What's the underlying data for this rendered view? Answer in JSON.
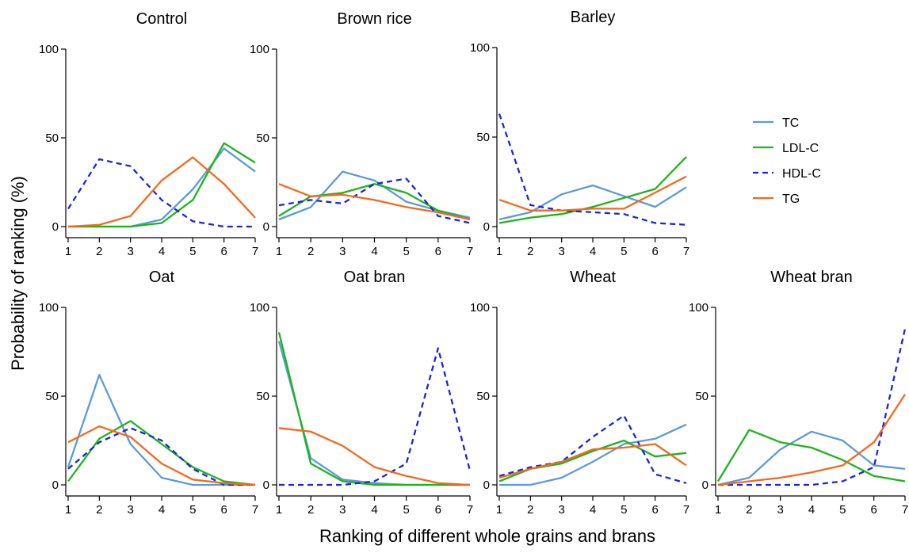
{
  "figure": {
    "ylabel": "Probability of ranking (%)",
    "xlabel": "Ranking of different whole grains and brans"
  },
  "legend": [
    {
      "key": "TC",
      "label": "TC",
      "color": "#5b9bd5",
      "dash": "solid"
    },
    {
      "key": "LDL",
      "label": "LDL-C",
      "color": "#1fb31f",
      "dash": "solid"
    },
    {
      "key": "HDL",
      "label": "HDL-C",
      "color": "#1b26d6",
      "dash": "dashed"
    },
    {
      "key": "TG",
      "label": "TG",
      "color": "#f26a1f",
      "dash": "solid"
    }
  ],
  "chart_data": [
    {
      "type": "line",
      "title": "Control",
      "x": [
        1,
        2,
        3,
        4,
        5,
        6,
        7
      ],
      "ylim": [
        0,
        100
      ],
      "yticks": [
        0,
        50,
        100
      ],
      "series": [
        {
          "name": "TC",
          "values": [
            0,
            0,
            0,
            4,
            21,
            44,
            31
          ]
        },
        {
          "name": "LDL-C",
          "values": [
            0,
            0,
            0,
            2,
            15,
            47,
            36
          ]
        },
        {
          "name": "HDL-C",
          "values": [
            10,
            38,
            34,
            15,
            3,
            0,
            0
          ]
        },
        {
          "name": "TG",
          "values": [
            0,
            1,
            6,
            26,
            39,
            24,
            5
          ]
        }
      ]
    },
    {
      "type": "line",
      "title": "Brown rice",
      "x": [
        1,
        2,
        3,
        4,
        5,
        6,
        7
      ],
      "ylim": [
        0,
        100
      ],
      "yticks": [
        0,
        50,
        100
      ],
      "series": [
        {
          "name": "TC",
          "values": [
            4,
            11,
            31,
            26,
            14,
            9,
            5
          ]
        },
        {
          "name": "LDL-C",
          "values": [
            6,
            17,
            19,
            24,
            19,
            9,
            4
          ]
        },
        {
          "name": "HDL-C",
          "values": [
            12,
            15,
            13,
            24,
            27,
            6,
            2
          ]
        },
        {
          "name": "TG",
          "values": [
            24,
            17,
            18,
            15,
            11,
            8,
            4
          ]
        }
      ]
    },
    {
      "type": "line",
      "title": "Barley",
      "x": [
        1,
        2,
        3,
        4,
        5,
        6,
        7
      ],
      "ylim": [
        0,
        100
      ],
      "yticks": [
        0,
        50,
        100
      ],
      "series": [
        {
          "name": "TC",
          "values": [
            4,
            8,
            18,
            23,
            17,
            11,
            22
          ]
        },
        {
          "name": "LDL-C",
          "values": [
            2,
            5,
            7,
            11,
            16,
            21,
            39
          ]
        },
        {
          "name": "HDL-C",
          "values": [
            63,
            12,
            9,
            8,
            7,
            2,
            1
          ]
        },
        {
          "name": "TG",
          "values": [
            15,
            9,
            9,
            10,
            10,
            19,
            28
          ]
        }
      ]
    },
    {
      "type": "line",
      "title": "Oat",
      "x": [
        1,
        2,
        3,
        4,
        5,
        6,
        7
      ],
      "ylim": [
        0,
        100
      ],
      "yticks": [
        0,
        50,
        100
      ],
      "series": [
        {
          "name": "TC",
          "values": [
            10,
            62,
            23,
            4,
            0,
            0,
            0
          ]
        },
        {
          "name": "LDL-C",
          "values": [
            2,
            26,
            36,
            23,
            10,
            2,
            0
          ]
        },
        {
          "name": "HDL-C",
          "values": [
            9,
            24,
            32,
            25,
            9,
            0,
            0
          ]
        },
        {
          "name": "TG",
          "values": [
            24,
            33,
            27,
            12,
            3,
            1,
            0
          ]
        }
      ]
    },
    {
      "type": "line",
      "title": "Oat bran",
      "x": [
        1,
        2,
        3,
        4,
        5,
        6,
        7
      ],
      "ylim": [
        0,
        100
      ],
      "yticks": [
        0,
        50,
        100
      ],
      "series": [
        {
          "name": "TC",
          "values": [
            81,
            15,
            3,
            1,
            0,
            0,
            0
          ]
        },
        {
          "name": "LDL-C",
          "values": [
            86,
            12,
            2,
            0,
            0,
            0,
            0
          ]
        },
        {
          "name": "HDL-C",
          "values": [
            0,
            0,
            0,
            2,
            12,
            77,
            8
          ]
        },
        {
          "name": "TG",
          "values": [
            32,
            30,
            22,
            10,
            5,
            1,
            0
          ]
        }
      ]
    },
    {
      "type": "line",
      "title": "Wheat",
      "x": [
        1,
        2,
        3,
        4,
        5,
        6,
        7
      ],
      "ylim": [
        0,
        100
      ],
      "yticks": [
        0,
        50,
        100
      ],
      "series": [
        {
          "name": "TC",
          "values": [
            0,
            0,
            4,
            13,
            23,
            26,
            34
          ]
        },
        {
          "name": "LDL-C",
          "values": [
            2,
            9,
            12,
            19,
            25,
            16,
            18
          ]
        },
        {
          "name": "HDL-C",
          "values": [
            5,
            10,
            13,
            27,
            39,
            6,
            1
          ]
        },
        {
          "name": "TG",
          "values": [
            4,
            9,
            13,
            20,
            21,
            23,
            11
          ]
        }
      ]
    },
    {
      "type": "line",
      "title": "Wheat bran",
      "x": [
        1,
        2,
        3,
        4,
        5,
        6,
        7
      ],
      "ylim": [
        0,
        100
      ],
      "yticks": [
        0,
        50,
        100
      ],
      "series": [
        {
          "name": "TC",
          "values": [
            0,
            4,
            20,
            30,
            25,
            11,
            9
          ]
        },
        {
          "name": "LDL-C",
          "values": [
            2,
            31,
            24,
            21,
            14,
            5,
            2
          ]
        },
        {
          "name": "HDL-C",
          "values": [
            0,
            0,
            0,
            0,
            2,
            10,
            88
          ]
        },
        {
          "name": "TG",
          "values": [
            0,
            2,
            4,
            7,
            11,
            24,
            51
          ]
        }
      ]
    }
  ]
}
